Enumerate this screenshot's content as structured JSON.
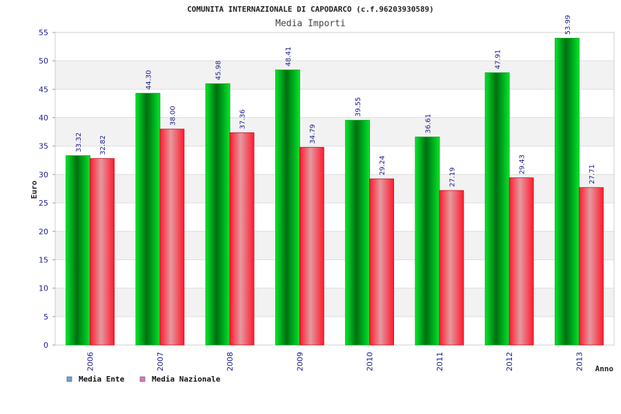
{
  "chart_data": {
    "type": "bar",
    "title": "COMUNITA INTERNAZIONALE DI CAPODARCO (c.f.96203930589)",
    "subtitle": "Media Importi",
    "xlabel": "Anno",
    "ylabel": "Euro",
    "ylim": [
      0,
      55
    ],
    "yticks": [
      0,
      5,
      10,
      15,
      20,
      25,
      30,
      35,
      40,
      45,
      50,
      55
    ],
    "grid": true,
    "legend_position": "bottom-left",
    "categories": [
      "2006",
      "2007",
      "2008",
      "2009",
      "2010",
      "2011",
      "2012",
      "2013"
    ],
    "series": [
      {
        "name": "Media Ente",
        "values": [
          33.32,
          44.3,
          45.98,
          48.41,
          39.55,
          36.61,
          47.91,
          53.99
        ],
        "labels": [
          "33.32",
          "44.30",
          "45.98",
          "48.41",
          "39.55",
          "36.61",
          "47.91",
          "53.99"
        ],
        "color": "#00cc22",
        "legend_color": "#66a3e0"
      },
      {
        "name": "Media Nazionale",
        "values": [
          32.82,
          38.0,
          37.36,
          34.79,
          29.24,
          27.19,
          29.43,
          27.71
        ],
        "labels": [
          "32.82",
          "38.00",
          "37.36",
          "34.79",
          "29.24",
          "27.19",
          "29.43",
          "27.71"
        ],
        "color": "#ee1122",
        "legend_color": "#dd77bb"
      }
    ]
  }
}
